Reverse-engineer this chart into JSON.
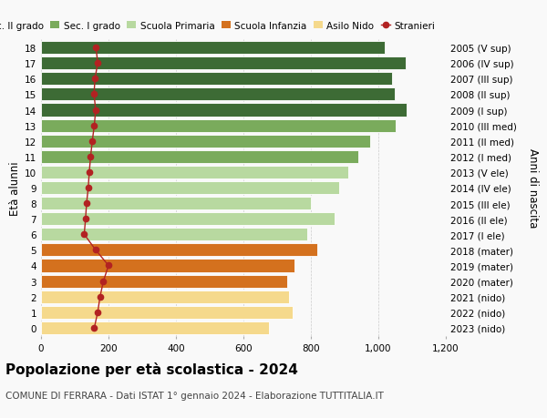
{
  "ages": [
    18,
    17,
    16,
    15,
    14,
    13,
    12,
    11,
    10,
    9,
    8,
    7,
    6,
    5,
    4,
    3,
    2,
    1,
    0
  ],
  "right_labels": [
    "2005 (V sup)",
    "2006 (IV sup)",
    "2007 (III sup)",
    "2008 (II sup)",
    "2009 (I sup)",
    "2010 (III med)",
    "2011 (II med)",
    "2012 (I med)",
    "2013 (V ele)",
    "2014 (IV ele)",
    "2015 (III ele)",
    "2016 (II ele)",
    "2017 (I ele)",
    "2018 (mater)",
    "2019 (mater)",
    "2020 (mater)",
    "2021 (nido)",
    "2022 (nido)",
    "2023 (nido)"
  ],
  "bar_values": [
    1020,
    1080,
    1040,
    1048,
    1085,
    1050,
    975,
    940,
    910,
    885,
    800,
    870,
    790,
    820,
    750,
    730,
    735,
    745,
    675
  ],
  "stranieri": [
    163,
    168,
    160,
    157,
    162,
    158,
    152,
    147,
    143,
    140,
    135,
    132,
    128,
    162,
    200,
    185,
    175,
    168,
    158
  ],
  "bar_colors": [
    "#3d6b35",
    "#3d6b35",
    "#3d6b35",
    "#3d6b35",
    "#3d6b35",
    "#7aab5c",
    "#7aab5c",
    "#7aab5c",
    "#b8d9a0",
    "#b8d9a0",
    "#b8d9a0",
    "#b8d9a0",
    "#b8d9a0",
    "#d4711e",
    "#d4711e",
    "#d4711e",
    "#f5d98c",
    "#f5d98c",
    "#f5d98c"
  ],
  "legend_labels": [
    "Sec. II grado",
    "Sec. I grado",
    "Scuola Primaria",
    "Scuola Infanzia",
    "Asilo Nido",
    "Stranieri"
  ],
  "legend_colors": [
    "#3d6b35",
    "#7aab5c",
    "#b8d9a0",
    "#d4711e",
    "#f5d98c",
    "#b22222"
  ],
  "title": "Popolazione per età scolastica - 2024",
  "subtitle": "COMUNE DI FERRARA - Dati ISTAT 1° gennaio 2024 - Elaborazione TUTTITALIA.IT",
  "ylabel_left": "Età alunni",
  "ylabel_right": "Anni di nascita",
  "xlim": [
    0,
    1200
  ],
  "xticks": [
    0,
    200,
    400,
    600,
    800,
    1000,
    1200
  ],
  "xtick_labels": [
    "0",
    "200",
    "400",
    "600",
    "800",
    "1,000",
    "1,200"
  ],
  "bg_color": "#f9f9f9",
  "bar_height": 0.82,
  "stranieri_color": "#b22222",
  "stranieri_markersize": 4.5,
  "stranieri_linewidth": 1.0,
  "grid_color": "#cccccc",
  "title_fontsize": 11,
  "subtitle_fontsize": 7.5,
  "tick_fontsize": 7.5,
  "legend_fontsize": 7.5,
  "ylabel_fontsize": 8.5
}
